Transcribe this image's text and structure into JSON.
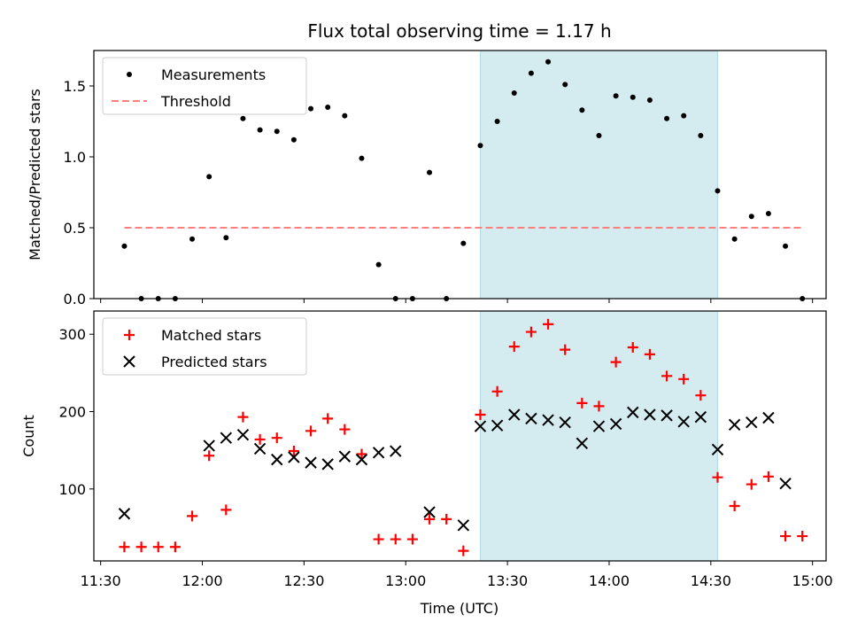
{
  "chart_data": [
    {
      "type": "scatter",
      "title": "Flux total observing time = 1.17 h",
      "ylabel": "Matched/Predicted stars",
      "xlabel": "",
      "xlim": [
        "11:28",
        "15:04"
      ],
      "ylim": [
        0,
        1.75
      ],
      "yticks": [
        0.0,
        0.5,
        1.0,
        1.5
      ],
      "ytick_labels": [
        "0.0",
        "0.5",
        "1.0",
        "1.5"
      ],
      "highlight_span": {
        "x0": "13:22",
        "x1": "14:32",
        "color": "#d4ebf0"
      },
      "legend_position": "upper-left",
      "series": [
        {
          "name": "Measurements",
          "marker": "dot",
          "color": "#000000",
          "x": [
            "11:37",
            "11:42",
            "11:47",
            "11:52",
            "11:57",
            "12:02",
            "12:07",
            "12:12",
            "12:17",
            "12:22",
            "12:27",
            "12:32",
            "12:37",
            "12:42",
            "12:47",
            "12:52",
            "12:57",
            "13:02",
            "13:07",
            "13:12",
            "13:17",
            "13:22",
            "13:27",
            "13:32",
            "13:37",
            "13:42",
            "13:47",
            "13:52",
            "13:57",
            "14:02",
            "14:07",
            "14:12",
            "14:17",
            "14:22",
            "14:27",
            "14:32",
            "14:37",
            "14:42",
            "14:47",
            "14:52",
            "14:57"
          ],
          "y": [
            0.37,
            0.0,
            0.0,
            0.0,
            0.42,
            0.86,
            0.43,
            1.27,
            1.19,
            1.18,
            1.12,
            1.34,
            1.35,
            1.29,
            0.99,
            0.24,
            0.0,
            0.0,
            0.89,
            0.0,
            0.39,
            1.08,
            1.25,
            1.45,
            1.59,
            1.67,
            1.51,
            1.33,
            1.15,
            1.43,
            1.42,
            1.4,
            1.27,
            1.29,
            1.15,
            0.76,
            0.42,
            0.58,
            0.6,
            0.37,
            0.0
          ]
        },
        {
          "name": "Threshold",
          "marker": "dashed-line",
          "color": "#ff7f7f",
          "x": [
            "11:37",
            "14:57"
          ],
          "y": [
            0.5,
            0.5
          ]
        }
      ]
    },
    {
      "type": "scatter",
      "title": "",
      "xlabel": "Time (UTC)",
      "ylabel": "Count",
      "xlim": [
        "11:28",
        "15:04"
      ],
      "ylim": [
        7,
        330
      ],
      "xticks": [
        "11:30",
        "12:00",
        "12:30",
        "13:00",
        "13:30",
        "14:00",
        "14:30",
        "15:00"
      ],
      "yticks": [
        100,
        200,
        300
      ],
      "ytick_labels": [
        "100",
        "200",
        "300"
      ],
      "highlight_span": {
        "x0": "13:22",
        "x1": "14:32",
        "color": "#d4ebf0"
      },
      "legend_position": "upper-left",
      "series": [
        {
          "name": "Matched stars",
          "marker": "plus",
          "color": "#ff0000",
          "x": [
            "11:37",
            "11:42",
            "11:47",
            "11:52",
            "11:57",
            "12:02",
            "12:07",
            "12:12",
            "12:17",
            "12:22",
            "12:27",
            "12:32",
            "12:37",
            "12:42",
            "12:47",
            "12:52",
            "12:57",
            "13:02",
            "13:07",
            "13:12",
            "13:17",
            "13:22",
            "13:27",
            "13:32",
            "13:37",
            "13:42",
            "13:47",
            "13:52",
            "13:57",
            "14:02",
            "14:07",
            "14:12",
            "14:17",
            "14:22",
            "14:27",
            "14:32",
            "14:37",
            "14:42",
            "14:47",
            "14:52",
            "14:57"
          ],
          "y": [
            25,
            25,
            25,
            25,
            65,
            143,
            73,
            193,
            164,
            166,
            149,
            175,
            191,
            177,
            145,
            35,
            35,
            35,
            61,
            61,
            20,
            196,
            226,
            284,
            303,
            313,
            280,
            211,
            207,
            264,
            283,
            274,
            246,
            242,
            221,
            115,
            78,
            106,
            116,
            39,
            39
          ]
        },
        {
          "name": "Predicted stars",
          "marker": "cross",
          "color": "#000000",
          "x": [
            "11:37",
            "12:02",
            "12:07",
            "12:12",
            "12:17",
            "12:22",
            "12:27",
            "12:32",
            "12:37",
            "12:42",
            "12:47",
            "12:52",
            "12:57",
            "13:07",
            "13:17",
            "13:22",
            "13:27",
            "13:32",
            "13:37",
            "13:42",
            "13:47",
            "13:52",
            "13:57",
            "14:02",
            "14:07",
            "14:12",
            "14:17",
            "14:22",
            "14:27",
            "14:32",
            "14:37",
            "14:42",
            "14:47",
            "14:52"
          ],
          "y": [
            68,
            156,
            166,
            170,
            152,
            138,
            141,
            134,
            132,
            142,
            138,
            147,
            149,
            70,
            53,
            181,
            182,
            196,
            191,
            189,
            186,
            159,
            181,
            184,
            199,
            196,
            195,
            187,
            193,
            151,
            183,
            186,
            192,
            107
          ]
        }
      ]
    }
  ]
}
